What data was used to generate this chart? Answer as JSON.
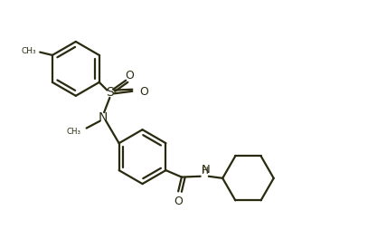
{
  "background_color": "#ffffff",
  "line_color": "#2a2a10",
  "line_width": 1.6,
  "fig_width": 4.17,
  "fig_height": 2.64,
  "dpi": 100,
  "xlim": [
    0,
    10
  ],
  "ylim": [
    0,
    6
  ]
}
